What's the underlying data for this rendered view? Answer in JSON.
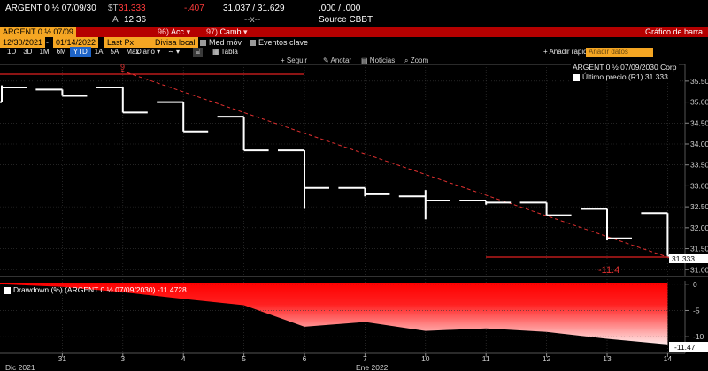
{
  "header": {
    "ticker": "ARGENT 0 ½ 07/09/30",
    "price_prefix": "$T",
    "price": "31.333",
    "change": "-.407",
    "bid_ask": "31.037 / 31.629",
    "yields": ".000 / .000",
    "line2_a": "A",
    "time": "12:36",
    "line2_dashes": "--x--",
    "source": "Source CBBT"
  },
  "redbar": {
    "ticker": "ARGENT 0 ½ 07/09",
    "item1_num": "96",
    "item1": "Acc",
    "item2_num": "97",
    "item2": "Camb",
    "right": "Gráfico de barra"
  },
  "toolbar": {
    "start": "12/30/2021",
    "end": "01/14/2022",
    "field": "Last Px",
    "currency": "Divisa local",
    "med": "Med móv",
    "eventos": "Eventos clave"
  },
  "periods": [
    "1D",
    "3D",
    "1M",
    "6M",
    "YTD",
    "1A",
    "5A",
    "Máx"
  ],
  "period_active": "YTD",
  "freq": "Diario",
  "view": "Tabla",
  "add_label": "Añadir rápid",
  "add_input": "Añadir datos",
  "actions": {
    "follow": "Seguir",
    "note": "Anotar",
    "news": "Noticias",
    "zoom": "Zoom"
  },
  "legend": {
    "line1": "ARGENT 0 ½ 07/09/2030 Corp",
    "line2": "Último precio  (R1) 31.333"
  },
  "drawdown_label": "Drawdown (%) (ARGENT 0 ½ 07/09/2030) -11.4728",
  "annotation": "-11.4",
  "marker": "9",
  "last_price_label": "31.333",
  "last_dd_label": "-11.47",
  "xlabels_extra": [
    "Dic 2021",
    "Ene 2022"
  ],
  "chart_data": {
    "type": "bar",
    "subtype": "ohlc-step",
    "x": [
      "12/30",
      "12/31",
      "1/3",
      "1/4",
      "1/5",
      "1/6",
      "1/7",
      "1/10",
      "1/11",
      "1/12",
      "1/13",
      "1/14"
    ],
    "x_tick_labels": [
      "31",
      "3",
      "4",
      "5",
      "6",
      "7",
      "10",
      "11",
      "12",
      "13",
      "14"
    ],
    "series": [
      {
        "open": [
          35.0,
          35.3,
          35.35,
          35.0,
          34.65,
          33.85,
          32.95,
          32.75,
          32.65,
          32.6,
          32.45,
          32.35
        ],
        "high": [
          35.4,
          35.3,
          35.35,
          35.0,
          34.65,
          33.85,
          32.95,
          32.9,
          32.65,
          32.6,
          32.45,
          32.35
        ],
        "low": [
          35.0,
          35.15,
          34.75,
          34.3,
          33.85,
          32.45,
          32.75,
          32.2,
          32.55,
          32.3,
          31.7,
          31.33
        ],
        "close": [
          35.35,
          35.15,
          34.75,
          34.3,
          33.85,
          32.95,
          32.8,
          32.65,
          32.6,
          32.3,
          31.75,
          31.33
        ]
      }
    ],
    "y_ticks": [
      "35.500",
      "35.000",
      "34.500",
      "34.000",
      "33.500",
      "33.000",
      "32.500",
      "32.000",
      "31.500",
      "31.000"
    ],
    "ylim": [
      30.9,
      35.75
    ],
    "drawdown": {
      "name": "Drawdown (%)",
      "values": [
        0,
        -0.5,
        -1.5,
        -2.8,
        -4.0,
        -8.1,
        -7.2,
        -8.9,
        -8.4,
        -9.1,
        -10.4,
        -11.47
      ],
      "y_ticks": [
        "0",
        "-5",
        "-10"
      ],
      "ylim": [
        -12.5,
        0.3
      ]
    },
    "colors": {
      "price": "#ffffff",
      "trend": "#e03030",
      "drawdown_top": "#ff0000",
      "drawdown_bottom": "#ffffff"
    }
  }
}
